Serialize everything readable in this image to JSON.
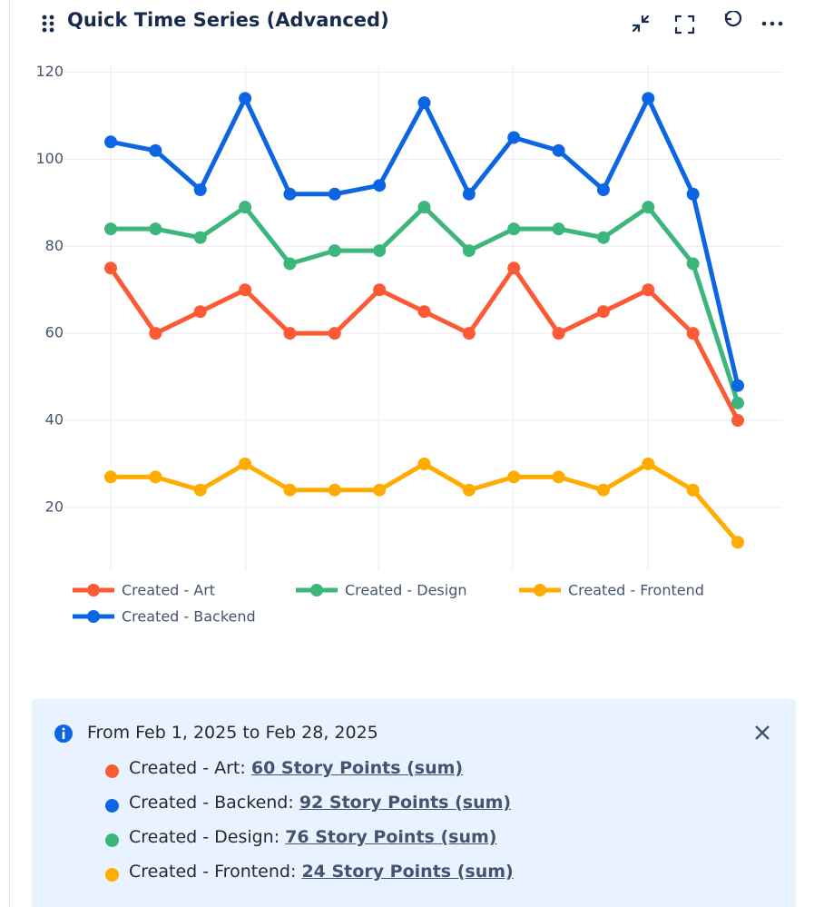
{
  "header": {
    "title": "Quick Time Series (Advanced)"
  },
  "chart_data": {
    "type": "line",
    "categories": [
      null,
      null,
      null,
      null,
      null,
      null,
      null,
      null,
      null,
      null,
      null,
      null,
      null,
      null,
      null
    ],
    "series": [
      {
        "name": "Created - Art",
        "color": "#fc5a35",
        "values": [
          75,
          60,
          65,
          70,
          60,
          60,
          70,
          65,
          60,
          75,
          60,
          65,
          70,
          60,
          40
        ]
      },
      {
        "name": "Created - Design",
        "color": "#3cb67b",
        "values": [
          84,
          84,
          82,
          89,
          76,
          79,
          79,
          89,
          79,
          84,
          84,
          82,
          89,
          76,
          44
        ]
      },
      {
        "name": "Created - Frontend",
        "color": "#ffab00",
        "values": [
          27,
          27,
          24,
          30,
          24,
          24,
          24,
          30,
          24,
          27,
          27,
          24,
          30,
          24,
          12
        ]
      },
      {
        "name": "Created - Backend",
        "color": "#0c66e4",
        "values": [
          104,
          102,
          93,
          114,
          92,
          92,
          94,
          113,
          92,
          105,
          102,
          93,
          114,
          92,
          48
        ]
      }
    ],
    "ylim": [
      6,
      122
    ],
    "yticks": [
      20,
      40,
      60,
      80,
      100,
      120
    ],
    "grid": true
  },
  "info": {
    "range": "From Feb 1, 2025 to Feb 28, 2025",
    "items": [
      {
        "label": "Created - Art:",
        "value": "60 Story Points (sum)",
        "color": "#fc5a35"
      },
      {
        "label": "Created - Backend:",
        "value": "92 Story Points (sum)",
        "color": "#0c66e4"
      },
      {
        "label": "Created - Design:",
        "value": "76 Story Points (sum)",
        "color": "#3cb67b"
      },
      {
        "label": "Created - Frontend:",
        "value": "24 Story Points (sum)",
        "color": "#ffab00"
      }
    ]
  }
}
